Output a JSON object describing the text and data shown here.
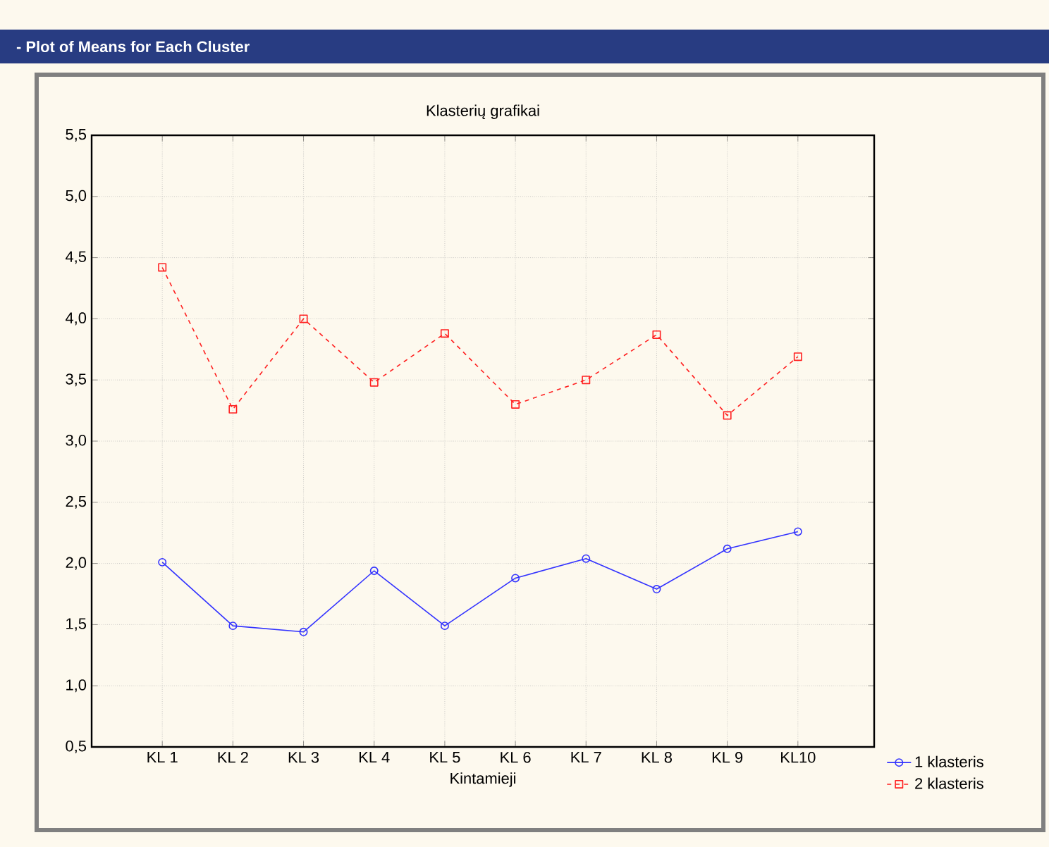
{
  "chart_data": {
    "type": "line",
    "title": "Klasterių grafikai",
    "xlabel": "Kintamieji",
    "annotations": [
      "- Plot of Means for Each Cluster"
    ],
    "categories": [
      "KL 1",
      "KL 2",
      "KL 3",
      "KL 4",
      "KL 5",
      "KL 6",
      "KL 7",
      "KL 8",
      "KL 9",
      "KL10"
    ],
    "series": [
      {
        "name": "1 klasteris",
        "color": "#3333ff",
        "marker": "circle",
        "line_style": "solid",
        "values": [
          2.01,
          1.49,
          1.44,
          1.94,
          1.49,
          1.88,
          2.04,
          1.79,
          2.12,
          2.26
        ]
      },
      {
        "name": "2 klasteris",
        "color": "#ff2020",
        "marker": "square",
        "line_style": "dashed",
        "values": [
          4.42,
          3.26,
          4.0,
          3.48,
          3.88,
          3.3,
          3.5,
          3.87,
          3.21,
          3.69
        ]
      }
    ],
    "ylim": [
      0.5,
      5.5
    ],
    "yticks": [
      {
        "value": 0.5,
        "label": "0,5"
      },
      {
        "value": 1.0,
        "label": "1,0"
      },
      {
        "value": 1.5,
        "label": "1,5"
      },
      {
        "value": 2.0,
        "label": "2,0"
      },
      {
        "value": 2.5,
        "label": "2,5"
      },
      {
        "value": 3.0,
        "label": "3,0"
      },
      {
        "value": 3.5,
        "label": "3,5"
      },
      {
        "value": 4.0,
        "label": "4,0"
      },
      {
        "value": 4.5,
        "label": "4,5"
      },
      {
        "value": 5.0,
        "label": "5,0"
      },
      {
        "value": 5.5,
        "label": "5,5"
      }
    ],
    "grid": true,
    "legend": "bottom right"
  }
}
